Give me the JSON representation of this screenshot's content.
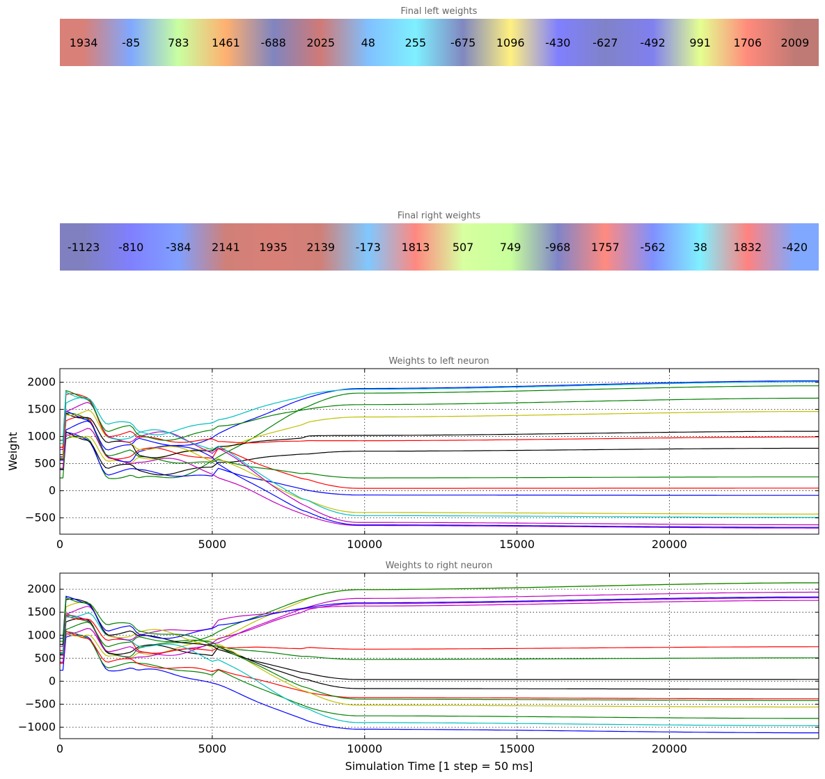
{
  "chart_data": [
    {
      "type": "heatmap",
      "title": "Final left weights",
      "values": [
        1934,
        -85,
        783,
        1461,
        -688,
        2025,
        48,
        255,
        -675,
        1096,
        -430,
        -627,
        -492,
        991,
        1706,
        2009
      ],
      "labels": [
        "1934",
        "-85",
        "783",
        "1461",
        "-688",
        "2025",
        "48",
        "255",
        "-675",
        "1096",
        "-430",
        "-627",
        "-492",
        "991",
        "1706",
        "2009"
      ],
      "colors": [
        "#d98078",
        "#80a8ff",
        "#c8ffa0",
        "#ffb070",
        "#8085c0",
        "#d07a76",
        "#80c0ff",
        "#7ff0ff",
        "#8088c0",
        "#fff080",
        "#8080ff",
        "#8082c8",
        "#8080f0",
        "#e4ff90",
        "#ff8a7c",
        "#c07a75"
      ]
    },
    {
      "type": "heatmap",
      "title": "Final right weights",
      "values": [
        -1123,
        -810,
        -384,
        2141,
        1935,
        2139,
        -173,
        1813,
        507,
        749,
        -968,
        1757,
        -562,
        38,
        1832,
        -420
      ],
      "labels": [
        "-1123",
        "-810",
        "-384",
        "2141",
        "1935",
        "2139",
        "-173",
        "1813",
        "507",
        "749",
        "-968",
        "1757",
        "-562",
        "38",
        "1832",
        "-420"
      ],
      "colors": [
        "#8080c0",
        "#8080ff",
        "#80a0ff",
        "#d08078",
        "#d88078",
        "#d08078",
        "#80c8ff",
        "#ff8880",
        "#d8ffa0",
        "#c8ff9c",
        "#8085c8",
        "#ff8a80",
        "#8090ff",
        "#80f0ff",
        "#ff8280",
        "#80a8ff"
      ]
    },
    {
      "type": "line",
      "title": "Weights to left neuron",
      "xlabel": "",
      "ylabel": "Weight",
      "xlim": [
        0,
        24900
      ],
      "ylim": [
        -800,
        2250
      ],
      "xticks": [
        0,
        5000,
        10000,
        15000,
        20000
      ],
      "xtick_labels": [
        "0",
        "5000",
        "10000",
        "15000",
        "20000"
      ],
      "yticks": [
        -500,
        0,
        500,
        1000,
        1500,
        2000
      ],
      "ytick_labels": [
        "−500",
        "0",
        "500",
        "1000",
        "1500",
        "2000"
      ],
      "grid": true,
      "final_values": [
        1934,
        -85,
        783,
        1461,
        -688,
        2025,
        48,
        255,
        -675,
        1096,
        -430,
        -627,
        -492,
        991,
        1706,
        2009
      ],
      "series_colors": [
        "#008000",
        "#0000ff",
        "#000000",
        "#bfbf00",
        "#bf00bf",
        "#0000ff",
        "#ff0000",
        "#008000",
        "#0000ff",
        "#000000",
        "#bfbf00",
        "#bf00bf",
        "#00bfbf",
        "#ff0000",
        "#008000",
        "#00bfbf"
      ]
    },
    {
      "type": "line",
      "title": "Weights to right neuron",
      "xlabel": "Simulation Time [1 step = 50 ms]",
      "ylabel": "",
      "xlim": [
        0,
        24900
      ],
      "ylim": [
        -1250,
        2350
      ],
      "xticks": [
        0,
        5000,
        10000,
        15000,
        20000
      ],
      "xtick_labels": [
        "0",
        "5000",
        "10000",
        "15000",
        "20000"
      ],
      "yticks": [
        -1000,
        -500,
        0,
        500,
        1000,
        1500,
        2000
      ],
      "ytick_labels": [
        "−1000",
        "−500",
        "0",
        "500",
        "1000",
        "1500",
        "2000"
      ],
      "grid": true,
      "final_values": [
        -1123,
        -810,
        -384,
        2141,
        1935,
        2139,
        -173,
        1813,
        507,
        749,
        -968,
        1757,
        -562,
        38,
        1832,
        -420
      ],
      "series_colors": [
        "#0000ff",
        "#008000",
        "#ff0000",
        "#bfbf00",
        "#bf00bf",
        "#008000",
        "#000000",
        "#bf00bf",
        "#008000",
        "#ff0000",
        "#00bfbf",
        "#bf00bf",
        "#bfbf00",
        "#000000",
        "#0000ff",
        "#008000"
      ]
    }
  ]
}
